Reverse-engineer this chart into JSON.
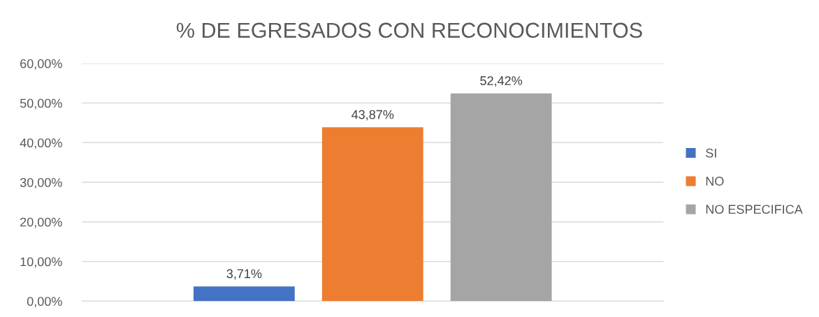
{
  "chart_data": {
    "type": "bar",
    "title": "% DE EGRESADOS CON RECONOCIMIENTOS",
    "categories": [
      null
    ],
    "series": [
      {
        "name": "SI",
        "color": "#4472c4",
        "values": [
          3.71
        ],
        "value_labels": [
          "3,71%"
        ]
      },
      {
        "name": "NO",
        "color": "#ed7d31",
        "values": [
          43.87
        ],
        "value_labels": [
          "43,87%"
        ]
      },
      {
        "name": "NO ESPECIFICA",
        "color": "#a5a5a5",
        "values": [
          52.42
        ],
        "value_labels": [
          "52,42%"
        ]
      }
    ],
    "ylim": [
      0,
      60
    ],
    "yticks": [
      {
        "value": 0,
        "label": "0,00%"
      },
      {
        "value": 10,
        "label": "10,00%"
      },
      {
        "value": 20,
        "label": "20,00%"
      },
      {
        "value": 30,
        "label": "30,00%"
      },
      {
        "value": 40,
        "label": "40,00%"
      },
      {
        "value": 50,
        "label": "50,00%"
      },
      {
        "value": 60,
        "label": "60,00%"
      }
    ],
    "grid": "y",
    "legend": "right"
  }
}
